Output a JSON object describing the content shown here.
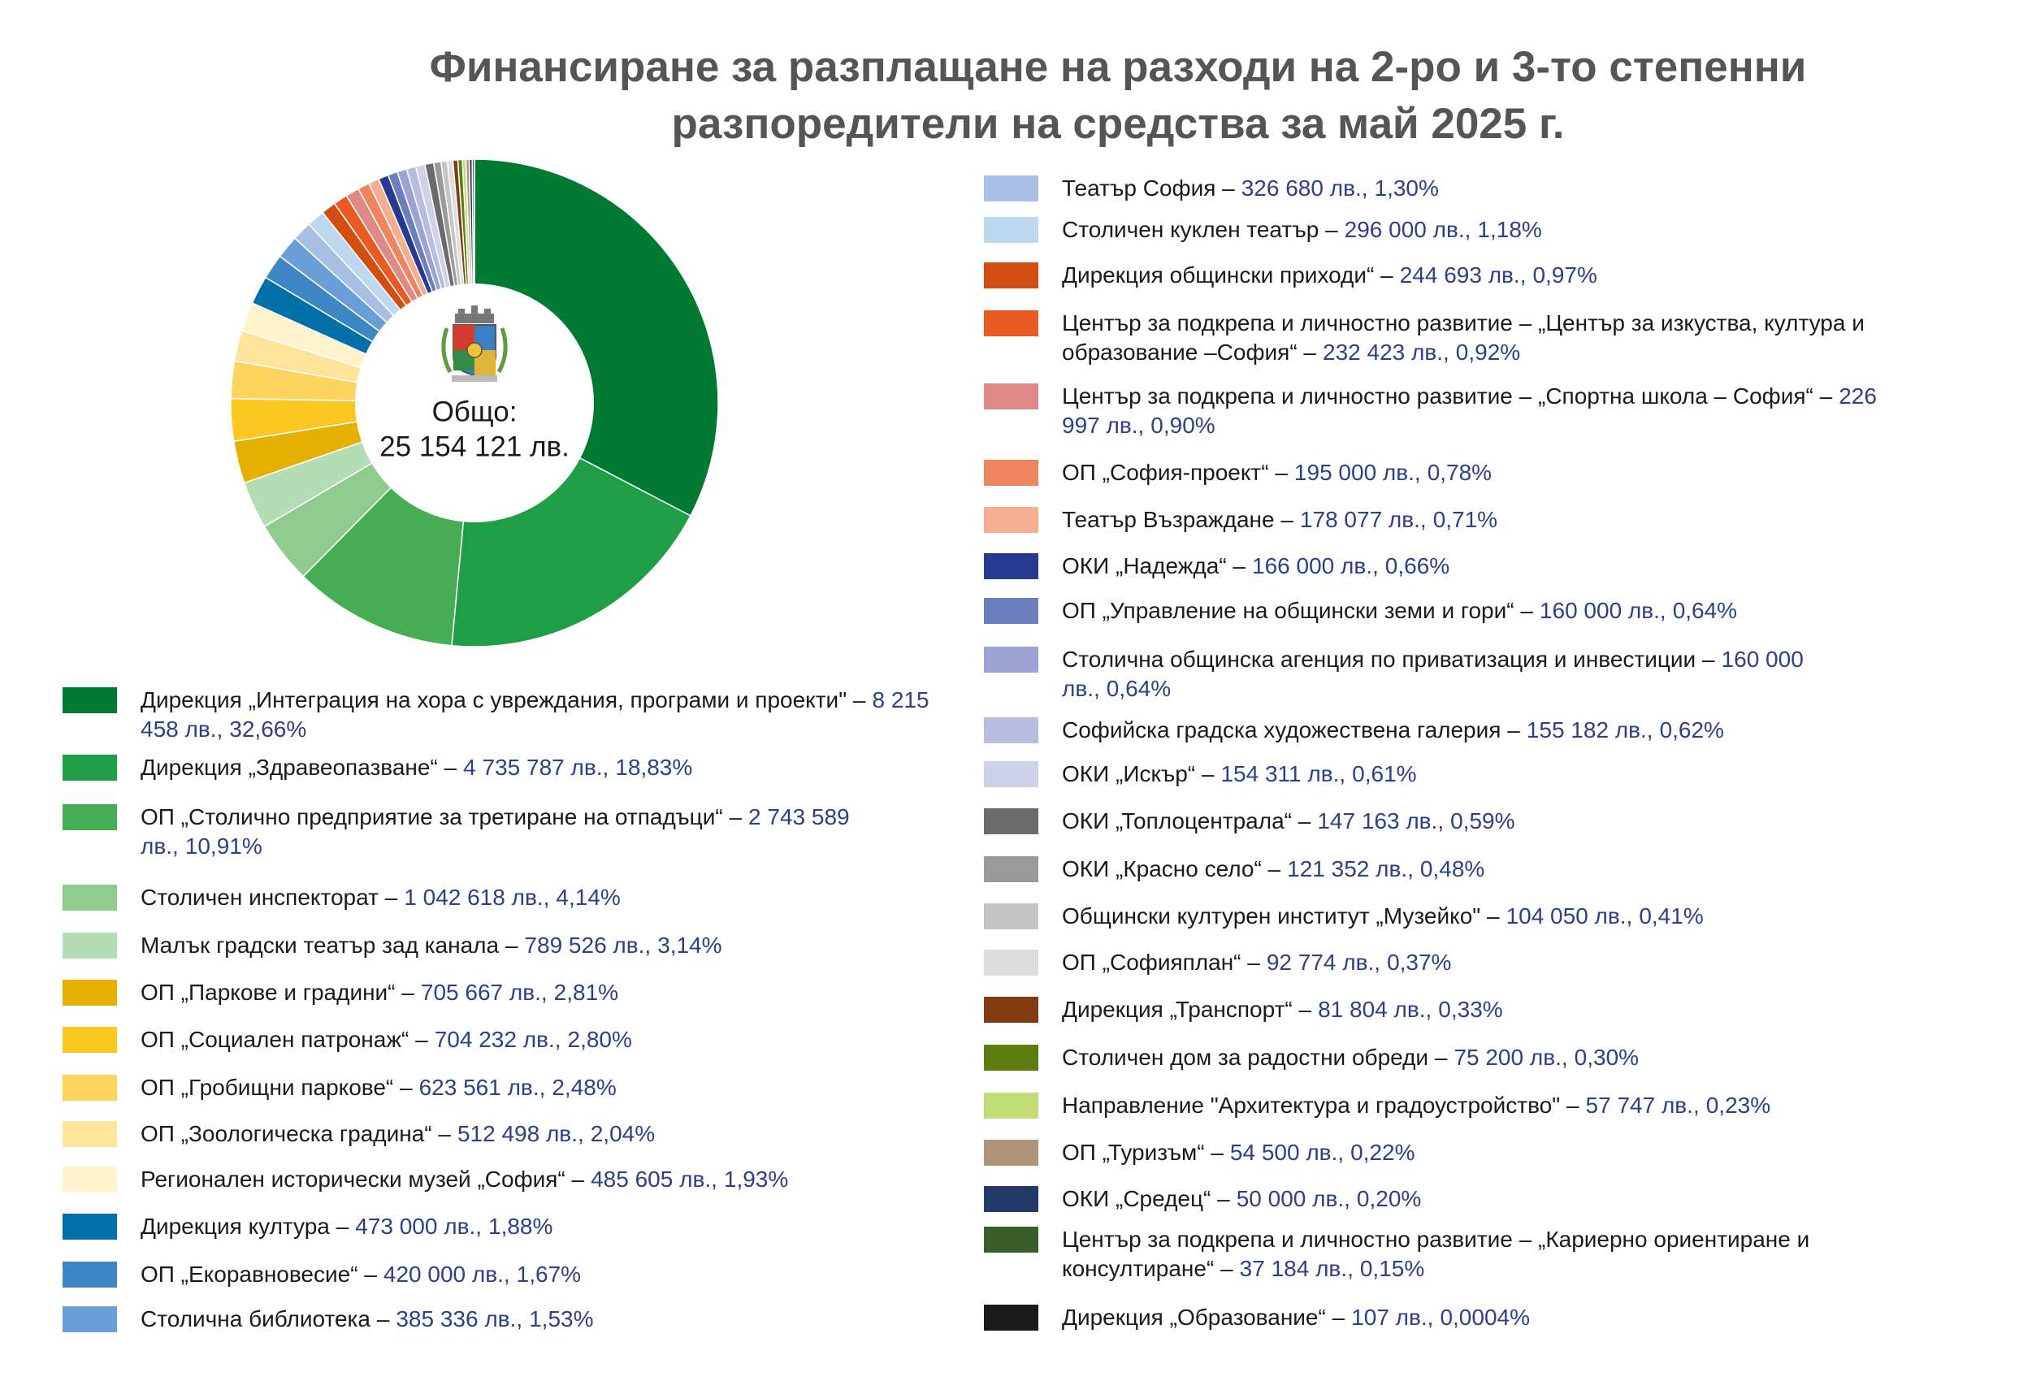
{
  "chart_data": {
    "type": "pie",
    "title": "Финансиране за разплащане на разходи на 2-ро и 3-то степенни разпоредители на средства за май 2025 г.",
    "center_title": "Общо:",
    "total": 25154121,
    "total_label": "25 154 121 лв.",
    "categories": [
      "Дирекция „Интеграция на хора с увреждания, програми и проекти\" –",
      "Дирекция „Здравеопазване“ –",
      "ОП „Столично предприятие за третиране на отпадъци“ –",
      "Столичен инспекторат –",
      "Малък градски театър зад канала –",
      "ОП „Паркове и градини“ –",
      "ОП „Социален патронаж“ –",
      "ОП „Гробищни паркове“ –",
      "ОП „Зоологическа градина“ –",
      "Регионален исторически музей „София“ –",
      "Дирекция култура –",
      "ОП „Екоравновесие“ –",
      "Столична библиотека –",
      "Театър София –",
      "Столичен куклен театър –",
      "Дирекция общински приходи“ –",
      "Център за подкрепа и личностно развитие – „Център за изкуства, култура и образование –София“ –",
      "Център за подкрепа и личностно развитие – „Спортна школа – София“ –",
      "ОП „София-проект“ –",
      "Театър Възраждане –",
      "ОКИ „Надежда“ –",
      "ОП „Управление на общински земи и гори“ –",
      "Столична общинска агенция по приватизация и инвестиции –",
      "Софийска градска художествена галерия –",
      "ОКИ „Искър“ –",
      "ОКИ „Топлоцентрала“ –",
      "ОКИ „Красно село“ –",
      "Общински културен институт „Музейко\" –",
      "ОП „Софияплан“ –",
      "Дирекция „Транспорт“ –",
      "Столичен дом за радостни обреди –",
      "Направление \"Архитектура и градоустройство\" –",
      "ОП „Туризъм“ –",
      "ОКИ „Средец“ –",
      "Център за подкрепа и личностно развитие – „Кариерно ориентиране и консултиране“ –",
      "Дирекция „Образование“ –"
    ],
    "values": [
      8215458,
      4735787,
      2743589,
      1042618,
      789526,
      705667,
      704232,
      623561,
      512498,
      485605,
      473000,
      420000,
      385336,
      326680,
      296000,
      244693,
      232423,
      226997,
      195000,
      178077,
      166000,
      160000,
      160000,
      155182,
      154311,
      147163,
      121352,
      104050,
      92774,
      81804,
      75200,
      57747,
      54500,
      50000,
      37184,
      107
    ],
    "value_labels": [
      "8 215 458 лв.,",
      "4 735 787 лв.,",
      "2 743 589 лв.,",
      "1 042 618 лв.,",
      "789 526 лв.,",
      "705 667 лв.,",
      "704 232 лв.,",
      "623 561 лв.,",
      "512 498 лв.,",
      "485 605 лв.,",
      "473 000 лв.,",
      "420 000 лв.,",
      "385 336 лв.,",
      "326 680 лв.,",
      "296 000 лв.,",
      "244 693 лв.,",
      "232 423 лв.,",
      "226 997 лв.,",
      "195 000 лв.,",
      "178 077 лв.,",
      "166 000 лв.,",
      "160 000 лв.,",
      "160 000 лв.,",
      "155 182 лв.,",
      "154 311 лв.,",
      "147 163 лв.,",
      "121 352 лв.,",
      "104 050 лв.,",
      "92 774 лв.,",
      "81 804 лв.,",
      "75 200 лв.,",
      "57 747 лв.,",
      "54 500 лв.,",
      "50 000 лв.,",
      "37 184 лв.,",
      "107 лв.,"
    ],
    "percents": [
      32.66,
      18.83,
      10.91,
      4.14,
      3.14,
      2.81,
      2.8,
      2.48,
      2.04,
      1.93,
      1.88,
      1.67,
      1.53,
      1.3,
      1.18,
      0.97,
      0.92,
      0.9,
      0.78,
      0.71,
      0.66,
      0.64,
      0.64,
      0.62,
      0.61,
      0.59,
      0.48,
      0.41,
      0.37,
      0.33,
      0.3,
      0.23,
      0.22,
      0.2,
      0.15,
      0.0004
    ],
    "percent_labels": [
      "32,66%",
      "18,83%",
      "10,91%",
      "4,14%",
      "3,14%",
      "2,81%",
      "2,80%",
      "2,48%",
      "2,04%",
      "1,93%",
      "1,88%",
      "1,67%",
      "1,53%",
      "1,30%",
      "1,18%",
      "0,97%",
      "0,92%",
      "0,90%",
      "0,78%",
      "0,71%",
      "0,66%",
      "0,64%",
      "0,64%",
      "0,62%",
      "0,61%",
      "0,59%",
      "0,48%",
      "0,41%",
      "0,37%",
      "0,33%",
      "0,30%",
      "0,23%",
      "0,22%",
      "0,20%",
      "0,15%",
      "0,0004%"
    ],
    "colors": [
      "#007a33",
      "#1e9e47",
      "#47ad55",
      "#8fcb8f",
      "#b5ddb5",
      "#e6b000",
      "#fcc623",
      "#fdd55e",
      "#fde49a",
      "#fef3cc",
      "#0070a8",
      "#3d87c4",
      "#6a9ed8",
      "#a6bfe3",
      "#bed8f0",
      "#d24d12",
      "#ea5a23",
      "#e08a87",
      "#ef8560",
      "#f5ae90",
      "#283a8f",
      "#6b7fbf",
      "#9ca2d2",
      "#b9bce1",
      "#cfd0ea",
      "#6b6b6b",
      "#9a9a9a",
      "#c4c4c4",
      "#dcdcdc",
      "#823a10",
      "#5d7c12",
      "#c2dc78",
      "#ae9478",
      "#213a6a",
      "#3a5d2a",
      "#1a1a1a"
    ]
  }
}
